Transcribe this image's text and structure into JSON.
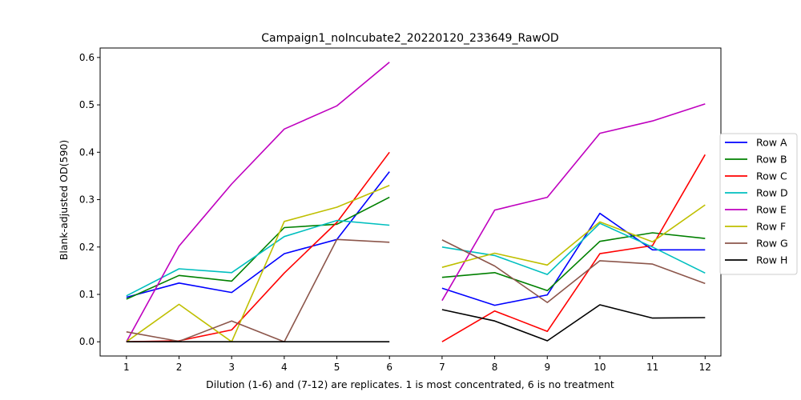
{
  "chart_data": {
    "type": "line",
    "title": "Campaign1_noIncubate2_20220120_233649_RawOD",
    "xlabel": "Dilution (1-6) and (7-12) are replicates. 1 is most concentrated, 6 is no treatment",
    "ylabel": "Blank-adjusted OD(590)",
    "x": [
      1,
      2,
      3,
      4,
      5,
      6,
      7,
      8,
      9,
      10,
      11,
      12
    ],
    "x_ticks": [
      "1",
      "2",
      "3",
      "4",
      "5",
      "6",
      "7",
      "8",
      "9",
      "10",
      "11",
      "12"
    ],
    "xlim": [
      0.5,
      12.3
    ],
    "ylim": [
      -0.03,
      0.62
    ],
    "y_ticks": [
      0.0,
      0.1,
      0.2,
      0.3,
      0.4,
      0.5,
      0.6
    ],
    "y_tick_labels": [
      "0.0",
      "0.1",
      "0.2",
      "0.3",
      "0.4",
      "0.5",
      "0.6"
    ],
    "grid": false,
    "legend_position": "right (outside, center)",
    "series": [
      {
        "name": "Row A",
        "color": "#0000ff",
        "values": [
          0.094,
          0.124,
          0.104,
          0.186,
          0.216,
          0.359,
          0.113,
          0.077,
          0.099,
          0.271,
          0.194,
          0.194
        ]
      },
      {
        "name": "Row B",
        "color": "#008000",
        "values": [
          0.09,
          0.14,
          0.128,
          0.241,
          0.248,
          0.305,
          0.136,
          0.146,
          0.108,
          0.212,
          0.23,
          0.218
        ]
      },
      {
        "name": "Row C",
        "color": "#ff0000",
        "values": [
          0.0,
          0.002,
          0.025,
          0.145,
          0.252,
          0.4,
          0.0,
          0.065,
          0.022,
          0.186,
          0.203,
          0.395
        ]
      },
      {
        "name": "Row D",
        "color": "#00bfbf",
        "values": [
          0.097,
          0.154,
          0.146,
          0.222,
          0.256,
          0.246,
          0.2,
          0.182,
          0.142,
          0.25,
          0.2,
          0.145
        ]
      },
      {
        "name": "Row E",
        "color": "#bf00bf",
        "values": [
          0.0,
          0.202,
          0.333,
          0.449,
          0.498,
          0.59,
          0.087,
          0.278,
          0.305,
          0.44,
          0.466,
          0.502
        ]
      },
      {
        "name": "Row F",
        "color": "#bfbf00",
        "values": [
          0.0,
          0.079,
          0.0,
          0.254,
          0.284,
          0.33,
          0.157,
          0.187,
          0.162,
          0.253,
          0.211,
          0.289
        ]
      },
      {
        "name": "Row G",
        "color": "#8c564b",
        "values": [
          0.021,
          0.001,
          0.044,
          0.0,
          0.216,
          0.21,
          0.215,
          0.16,
          0.083,
          0.171,
          0.164,
          0.123
        ]
      },
      {
        "name": "Row H",
        "color": "#000000",
        "values": [
          0.0,
          0.0,
          0.0,
          0.0,
          0.0,
          0.0,
          0.068,
          0.044,
          0.002,
          0.078,
          0.05,
          0.051
        ]
      }
    ]
  }
}
